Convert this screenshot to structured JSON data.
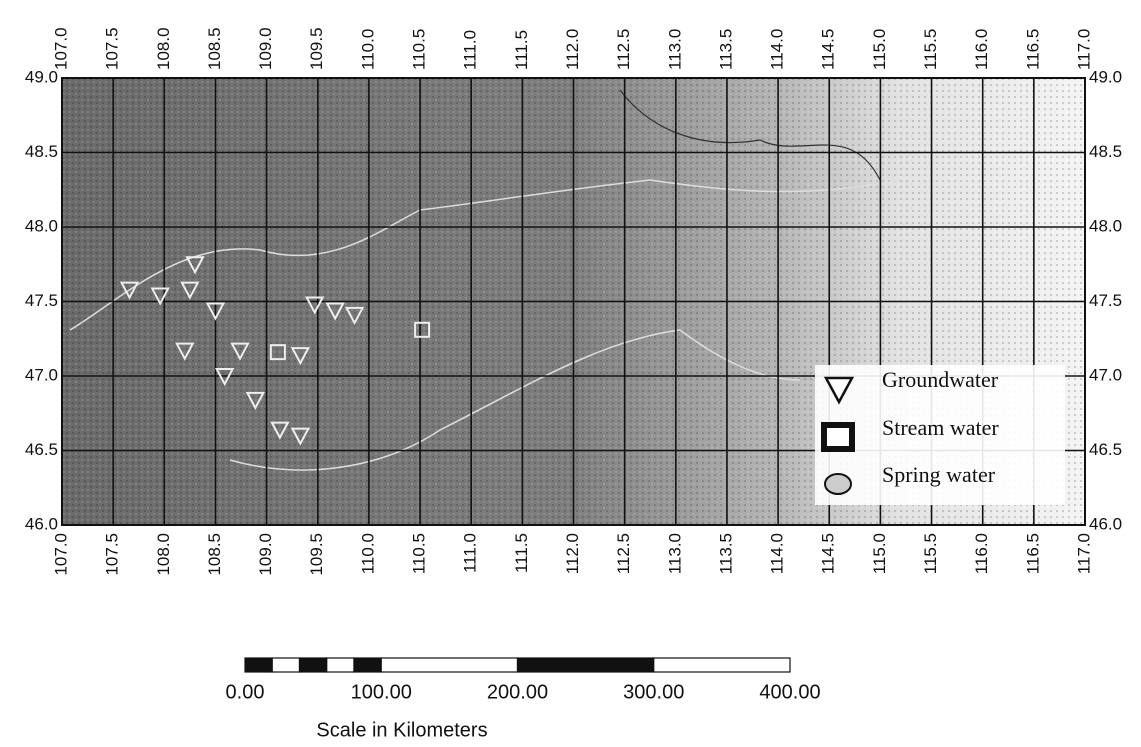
{
  "map": {
    "xlim": [
      107,
      117
    ],
    "ylim": [
      46,
      49
    ],
    "xticks": [
      {
        "value": 107,
        "label": "107.0"
      },
      {
        "value": 107.5,
        "label": "107.5"
      },
      {
        "value": 108,
        "label": "108.0"
      },
      {
        "value": 108.5,
        "label": "108.5"
      },
      {
        "value": 109,
        "label": "109.0"
      },
      {
        "value": 109.5,
        "label": "109.5"
      },
      {
        "value": 110,
        "label": "110.0"
      },
      {
        "value": 110.5,
        "label": "110.5"
      },
      {
        "value": 111,
        "label": "111.0"
      },
      {
        "value": 111.5,
        "label": "111.5"
      },
      {
        "value": 112,
        "label": "112.0"
      },
      {
        "value": 112.5,
        "label": "112.5"
      },
      {
        "value": 113,
        "label": "113.0"
      },
      {
        "value": 113.5,
        "label": "113.5"
      },
      {
        "value": 114,
        "label": "114.0"
      },
      {
        "value": 114.5,
        "label": "114.5"
      },
      {
        "value": 115,
        "label": "115.0"
      },
      {
        "value": 115.5,
        "label": "115.5"
      },
      {
        "value": 116,
        "label": "116.0"
      },
      {
        "value": 116.5,
        "label": "116.5"
      },
      {
        "value": 117,
        "label": "117.0"
      }
    ],
    "yticks": [
      {
        "value": 46,
        "label": "46.0"
      },
      {
        "value": 46.5,
        "label": "46.5"
      },
      {
        "value": 47,
        "label": "47.0"
      },
      {
        "value": 47.5,
        "label": "47.5"
      },
      {
        "value": 48,
        "label": "48.0"
      },
      {
        "value": 48.5,
        "label": "48.5"
      },
      {
        "value": 49,
        "label": "49.0"
      }
    ],
    "legend": {
      "groundwater": "Groundwater",
      "stream": "Stream water",
      "spring": "Spring water"
    },
    "groundwater_sites": [
      {
        "lon": 107.66,
        "lat": 47.58
      },
      {
        "lon": 107.96,
        "lat": 47.54
      },
      {
        "lon": 108.25,
        "lat": 47.58
      },
      {
        "lon": 108.3,
        "lat": 47.75
      },
      {
        "lon": 108.5,
        "lat": 47.44
      },
      {
        "lon": 108.2,
        "lat": 47.17
      },
      {
        "lon": 108.74,
        "lat": 47.17
      },
      {
        "lon": 108.59,
        "lat": 47.0
      },
      {
        "lon": 108.89,
        "lat": 46.84
      },
      {
        "lon": 109.13,
        "lat": 46.64
      },
      {
        "lon": 109.33,
        "lat": 46.6
      },
      {
        "lon": 109.33,
        "lat": 47.14
      },
      {
        "lon": 109.47,
        "lat": 47.48
      },
      {
        "lon": 109.67,
        "lat": 47.44
      },
      {
        "lon": 109.86,
        "lat": 47.41
      }
    ],
    "stream_sites": [
      {
        "lon": 109.11,
        "lat": 47.16
      },
      {
        "lon": 110.52,
        "lat": 47.31
      }
    ],
    "scale": {
      "caption": "Scale in Kilometers",
      "xlim": [
        0,
        400
      ],
      "ticks": [
        {
          "value": 0,
          "label": "0.00"
        },
        {
          "value": 100,
          "label": "100.00"
        },
        {
          "value": 200,
          "label": "200.00"
        },
        {
          "value": 300,
          "label": "300.00"
        },
        {
          "value": 400,
          "label": "400.00"
        }
      ]
    }
  }
}
